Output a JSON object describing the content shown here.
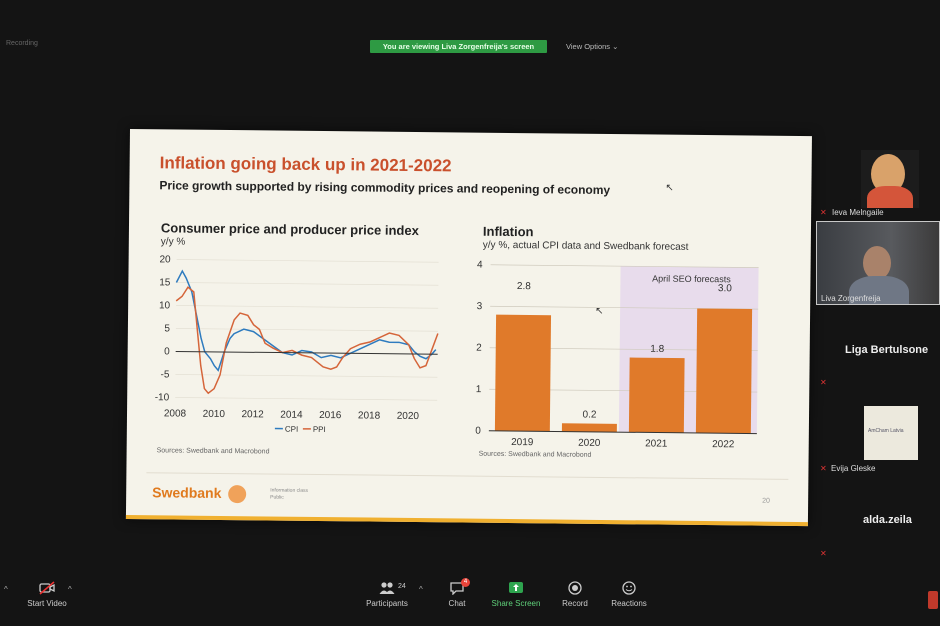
{
  "top_bar": {
    "recording": "Recording",
    "viewing_banner": "You are viewing Liva Zorgenfreija's screen",
    "view_options": "View Options ⌄"
  },
  "slide": {
    "title": "Inflation going back up in 2021-2022",
    "subtitle": "Price growth supported by rising commodity prices and reopening of economy",
    "logo": "Swedbank",
    "info_class_label": "Information class",
    "info_class_value": "Public",
    "page": "20"
  },
  "chart_data": [
    {
      "type": "line",
      "title": "Consumer price and producer price index",
      "ylabel": "y/y %",
      "ylim": [
        -10,
        20
      ],
      "y_ticks": [
        "20",
        "15",
        "10",
        "5",
        "0",
        "-5",
        "-10"
      ],
      "x_ticks": [
        "2008",
        "2010",
        "2012",
        "2014",
        "2016",
        "2018",
        "2020"
      ],
      "xlim": [
        2008,
        2021.5
      ],
      "legend_cpi": "CPI",
      "legend_ppi": "PPI",
      "source": "Sources: Swedbank and Macrobond",
      "colors": {
        "cpi": "#2e7bbf",
        "ppi": "#d5653a",
        "zero": "#333333"
      },
      "series": [
        {
          "name": "CPI",
          "x": [
            2008.0,
            2008.3,
            2008.5,
            2008.8,
            2009.0,
            2009.3,
            2009.5,
            2009.8,
            2010.0,
            2010.2,
            2010.5,
            2010.8,
            2011.0,
            2011.5,
            2012.0,
            2012.5,
            2013.0,
            2013.5,
            2014.0,
            2014.5,
            2015.0,
            2015.5,
            2016.0,
            2016.5,
            2017.0,
            2017.5,
            2018.0,
            2018.5,
            2019.0,
            2019.5,
            2020.0,
            2020.3,
            2020.6,
            2020.9,
            2021.2,
            2021.4
          ],
          "values": [
            15,
            17.5,
            16,
            13,
            9,
            3,
            0,
            -1.5,
            -3,
            -4,
            0,
            3,
            4,
            5,
            4.5,
            3,
            1.5,
            0,
            -0.5,
            0.5,
            0.2,
            -1,
            -0.5,
            -1,
            0,
            1,
            2,
            3,
            2.5,
            2.5,
            2,
            0.5,
            -0.5,
            -1,
            0,
            1
          ]
        },
        {
          "name": "PPI",
          "x": [
            2008.0,
            2008.3,
            2008.6,
            2008.9,
            2009.1,
            2009.3,
            2009.5,
            2009.7,
            2010.0,
            2010.3,
            2010.6,
            2011.0,
            2011.3,
            2011.7,
            2012.0,
            2012.3,
            2012.6,
            2013.0,
            2013.5,
            2014.0,
            2014.5,
            2015.0,
            2015.3,
            2015.6,
            2016.0,
            2016.3,
            2016.6,
            2017.0,
            2017.5,
            2018.0,
            2018.5,
            2019.0,
            2019.5,
            2020.0,
            2020.3,
            2020.6,
            2020.9,
            2021.2,
            2021.5
          ],
          "values": [
            11,
            12,
            14,
            13,
            5,
            -3,
            -8,
            -9,
            -8,
            -5,
            2,
            7,
            8.5,
            8,
            6,
            5,
            2,
            1,
            0,
            0.5,
            -0.5,
            -1,
            -2,
            -3,
            -3.5,
            -3,
            -1,
            1,
            2,
            2.5,
            3.5,
            4.5,
            4,
            2,
            -1,
            -3,
            -2.5,
            1,
            4.5
          ]
        }
      ]
    },
    {
      "type": "bar",
      "title": "Inflation",
      "ylabel": "y/y %, actual CPI data and Swedbank forecast",
      "ylim": [
        0,
        4
      ],
      "y_ticks": [
        "4",
        "3",
        "2",
        "1",
        "0"
      ],
      "categories": [
        "2019",
        "2020",
        "2021",
        "2022"
      ],
      "values": [
        2.8,
        0.2,
        1.8,
        3.0
      ],
      "value_labels": [
        "2.8",
        "0.2",
        "1.8",
        "3.0"
      ],
      "forecast_label": "April SEO forecasts",
      "source": "Sources: Swedbank and Macrobond",
      "colors": {
        "bar": "#e07a2a",
        "forecast_bg": "#e8dcec"
      }
    }
  ],
  "participants": {
    "tiles": [
      {
        "name": "Ieva Melngaile",
        "muted": true
      },
      {
        "name": "Liva Zorgenfreija",
        "muted": false
      },
      {
        "name": "Liga Bertulsone",
        "muted": true
      },
      {
        "name": "Evija Gleske",
        "muted": true,
        "logo": "AmCham Latvia"
      },
      {
        "name": "alda.zeila",
        "muted": true
      }
    ]
  },
  "toolbar": {
    "start_video": "Start Video",
    "participants": "Participants",
    "participants_count": "24",
    "chat": "Chat",
    "chat_badge": "4",
    "share_screen": "Share Screen",
    "record": "Record",
    "reactions": "Reactions"
  }
}
